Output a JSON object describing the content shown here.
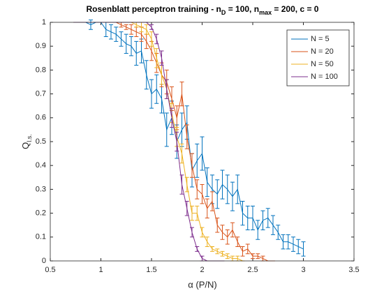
{
  "chart_data": {
    "type": "errorbar",
    "title": [
      "Rosenblatt perceptron training - n",
      "D",
      " = 100, n",
      "max",
      " = 200, c = 0"
    ],
    "xlabel": "α (P/N)",
    "ylabel": [
      "Q",
      "l.s."
    ],
    "x": [
      0.75,
      0.8,
      0.85,
      0.9,
      0.95,
      1,
      1.05,
      1.1,
      1.15,
      1.2,
      1.25,
      1.3,
      1.35,
      1.4,
      1.45,
      1.5,
      1.55,
      1.6,
      1.65,
      1.7,
      1.75,
      1.8,
      1.85,
      1.9,
      1.95,
      2,
      2.05,
      2.1,
      2.15,
      2.2,
      2.25,
      2.3,
      2.35,
      2.4,
      2.45,
      2.5,
      2.55,
      2.6,
      2.65,
      2.7,
      2.75,
      2.8,
      2.85,
      2.9,
      2.95,
      3
    ],
    "series": [
      {
        "name": "N = 5",
        "color": "#0072BD",
        "values": [
          1,
          1,
          1,
          0.99,
          1,
          1,
          0.97,
          0.96,
          0.95,
          0.93,
          0.91,
          0.9,
          0.87,
          0.88,
          0.78,
          0.7,
          0.72,
          0.68,
          0.55,
          0.6,
          0.5,
          0.55,
          0.58,
          0.38,
          0.42,
          0.45,
          0.33,
          0.3,
          0.28,
          0.32,
          0.3,
          0.27,
          0.3,
          0.2,
          0.18,
          0.18,
          0.13,
          0.17,
          0.18,
          0.15,
          0.12,
          0.08,
          0.08,
          0.07,
          0.06,
          0.05
        ],
        "errors": [
          0,
          0,
          0,
          0.02,
          0,
          0,
          0.03,
          0.03,
          0.03,
          0.03,
          0.04,
          0.04,
          0.05,
          0.05,
          0.06,
          0.06,
          0.06,
          0.06,
          0.07,
          0.07,
          0.07,
          0.07,
          0.07,
          0.07,
          0.07,
          0.07,
          0.06,
          0.06,
          0.06,
          0.06,
          0.06,
          0.06,
          0.06,
          0.05,
          0.05,
          0.05,
          0.04,
          0.04,
          0.04,
          0.04,
          0.03,
          0.03,
          0.03,
          0.03,
          0.03,
          0.03
        ]
      },
      {
        "name": "N = 20",
        "color": "#D95319",
        "values": [
          1,
          1,
          1,
          1,
          1,
          1,
          1,
          1,
          1,
          0.99,
          0.98,
          0.97,
          0.96,
          0.95,
          0.92,
          0.88,
          0.83,
          0.78,
          0.75,
          0.68,
          0.6,
          0.7,
          0.52,
          0.4,
          0.3,
          0.28,
          0.22,
          0.25,
          0.15,
          0.12,
          0.1,
          0.13,
          0.08,
          0.04,
          0.05,
          0.02,
          0.02,
          0.01,
          0,
          0,
          null,
          null,
          null,
          null,
          null,
          null
        ],
        "errors": [
          0,
          0,
          0,
          0,
          0,
          0,
          0,
          0,
          0,
          0.01,
          0.01,
          0.02,
          0.02,
          0.03,
          0.03,
          0.04,
          0.04,
          0.05,
          0.05,
          0.05,
          0.05,
          0.05,
          0.05,
          0.05,
          0.04,
          0.04,
          0.04,
          0.04,
          0.03,
          0.03,
          0.03,
          0.03,
          0.02,
          0.02,
          0.02,
          0.01,
          0.01,
          0.01,
          0,
          0,
          null,
          null,
          null,
          null,
          null,
          null
        ]
      },
      {
        "name": "N = 50",
        "color": "#EDB120",
        "values": [
          1,
          1,
          1,
          1,
          1,
          1,
          1,
          1,
          1,
          1,
          1,
          1,
          0.99,
          0.98,
          0.97,
          0.93,
          0.85,
          0.78,
          0.72,
          0.62,
          0.52,
          0.45,
          0.32,
          0.2,
          0.2,
          0.12,
          0.08,
          0.05,
          0.04,
          0.03,
          0.02,
          0.01,
          0.01,
          0,
          null,
          null,
          null,
          null,
          null,
          null,
          null,
          null,
          null,
          null,
          null,
          null
        ],
        "errors": [
          0,
          0,
          0,
          0,
          0,
          0,
          0,
          0,
          0,
          0,
          0,
          0,
          0.01,
          0.02,
          0.02,
          0.03,
          0.04,
          0.04,
          0.04,
          0.04,
          0.04,
          0.04,
          0.03,
          0.03,
          0.03,
          0.02,
          0.02,
          0.01,
          0.01,
          0.01,
          0.01,
          0.01,
          0.01,
          0,
          null,
          null,
          null,
          null,
          null,
          null,
          null,
          null,
          null,
          null,
          null,
          null
        ]
      },
      {
        "name": "N = 100",
        "color": "#7E2F8E",
        "values": [
          1,
          1,
          1,
          1,
          1,
          1,
          1,
          1,
          1,
          1,
          1,
          1,
          1,
          1,
          1,
          0.98,
          0.93,
          0.85,
          0.72,
          0.6,
          0.5,
          0.32,
          0.22,
          0.12,
          0.05,
          0.01,
          0,
          0,
          0,
          0,
          null,
          null,
          null,
          null,
          null,
          null,
          null,
          null,
          null,
          null,
          null,
          null,
          null,
          null,
          null,
          null
        ],
        "errors": [
          0,
          0,
          0,
          0,
          0,
          0,
          0,
          0,
          0,
          0,
          0,
          0,
          0,
          0,
          0,
          0.01,
          0.02,
          0.03,
          0.04,
          0.04,
          0.04,
          0.04,
          0.03,
          0.02,
          0.01,
          0.01,
          0,
          0,
          0,
          0,
          null,
          null,
          null,
          null,
          null,
          null,
          null,
          null,
          null,
          null,
          null,
          null,
          null,
          null,
          null,
          null
        ]
      }
    ],
    "xlim": [
      0.5,
      3.5
    ],
    "xticks": [
      0.5,
      1,
      1.5,
      2,
      2.5,
      3,
      3.5
    ],
    "ylim": [
      0,
      1
    ],
    "yticks": [
      0,
      0.1,
      0.2,
      0.3,
      0.4,
      0.5,
      0.6,
      0.7,
      0.8,
      0.9,
      1
    ],
    "legend": "northeast",
    "grid": false
  }
}
